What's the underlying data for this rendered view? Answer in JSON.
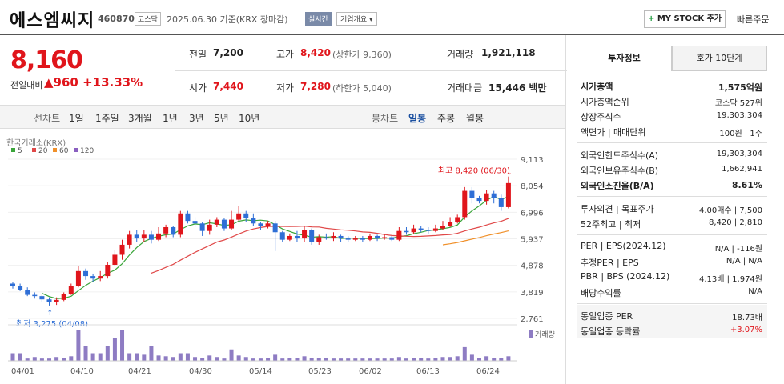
{
  "header": {
    "name": "에스엠씨지",
    "code": "460870",
    "market": "코스닥",
    "date_text": "2025.06.30 기준(KRX 장마감)",
    "live": "실시간",
    "company_info": "기업개요 ▾",
    "my_stock": "MY STOCK 추가",
    "quick_order": "빠른주문"
  },
  "price": {
    "current": "8,160",
    "change_label": "전일대비",
    "change": "▲960",
    "rate": "+13.33%"
  },
  "summary": {
    "prev_label": "전일",
    "prev": "7,200",
    "high_label": "고가",
    "high": "8,420",
    "upper_label": "(상한가",
    "upper": "9,360)",
    "vol_label": "거래량",
    "vol": "1,921,118",
    "open_label": "시가",
    "open": "7,440",
    "low_label": "저가",
    "low": "7,280",
    "lower_label": "(하한가",
    "lower": "5,040)",
    "amt_label": "거래대금",
    "amt": "15,446",
    "amt_unit": "백만"
  },
  "periods": {
    "label": "선차트",
    "items": [
      "1일",
      "1주일",
      "3개월",
      "1년",
      "3년",
      "5년",
      "10년"
    ],
    "candle_label": "봉차트",
    "candles": [
      "일봉",
      "주봉",
      "월봉"
    ],
    "candle_selected": "일봉"
  },
  "chart_data": {
    "type": "candlestick",
    "source": "한국거래소(KRX)",
    "legend": [
      {
        "name": "5",
        "color": "#3aa53a"
      },
      {
        "name": "20",
        "color": "#e04848"
      },
      {
        "name": "60",
        "color": "#f0902a"
      },
      {
        "name": "120",
        "color": "#8a5fc0"
      }
    ],
    "y_ticks": [
      9113,
      8054,
      6996,
      5937,
      4878,
      3819,
      2761
    ],
    "x_ticks": [
      "04/01",
      "04/10",
      "04/21",
      "04/30",
      "05/14",
      "05/23",
      "06/02",
      "06/13",
      "06/24"
    ],
    "high_label": "최고 8,420 (06/30)",
    "low_label": "최저 3,275 (04/08)",
    "volume_label": "거래량",
    "candles": [
      [
        4150,
        4050,
        4200,
        3950
      ],
      [
        4050,
        3900,
        4150,
        3850
      ],
      [
        3900,
        3700,
        4000,
        3650
      ],
      [
        3700,
        3650,
        3800,
        3550
      ],
      [
        3650,
        3520,
        3700,
        3400
      ],
      [
        3520,
        3400,
        3600,
        3275
      ],
      [
        3400,
        3500,
        3600,
        3300
      ],
      [
        3500,
        3750,
        3800,
        3450
      ],
      [
        3750,
        4050,
        4150,
        3700
      ],
      [
        4050,
        4650,
        4850,
        4000
      ],
      [
        4650,
        4450,
        4750,
        4300
      ],
      [
        4450,
        4350,
        4550,
        4200
      ],
      [
        4350,
        4450,
        4650,
        4250
      ],
      [
        4450,
        4900,
        5000,
        4350
      ],
      [
        4900,
        5300,
        5500,
        4850
      ],
      [
        5300,
        5700,
        5900,
        5100
      ],
      [
        5700,
        6100,
        6250,
        5550
      ],
      [
        6100,
        5950,
        6300,
        5800
      ],
      [
        5950,
        6100,
        6300,
        5800
      ],
      [
        6100,
        5900,
        6250,
        5750
      ],
      [
        5900,
        6150,
        6400,
        5850
      ],
      [
        6150,
        6400,
        6500,
        6000
      ],
      [
        6400,
        6100,
        6450,
        6000
      ],
      [
        6100,
        6950,
        7050,
        6000
      ],
      [
        6950,
        6650,
        7050,
        6550
      ],
      [
        6650,
        6550,
        6800,
        6400
      ],
      [
        6550,
        6250,
        6600,
        6050
      ],
      [
        6250,
        6500,
        6700,
        6100
      ],
      [
        6500,
        6700,
        6800,
        6400
      ],
      [
        6700,
        6350,
        6750,
        6250
      ],
      [
        6350,
        6700,
        7050,
        6300
      ],
      [
        6700,
        6950,
        7250,
        6650
      ],
      [
        6950,
        6750,
        7050,
        6600
      ],
      [
        6750,
        6550,
        6950,
        6450
      ],
      [
        6550,
        6450,
        6600,
        6300
      ],
      [
        6450,
        6550,
        6650,
        6350
      ],
      [
        6550,
        6200,
        6650,
        5450
      ],
      [
        6200,
        5900,
        6250,
        5800
      ],
      [
        5900,
        6050,
        6150,
        5850
      ],
      [
        6050,
        5950,
        6250,
        5800
      ],
      [
        5950,
        6300,
        6450,
        5800
      ],
      [
        6300,
        5800,
        6350,
        5700
      ],
      [
        5800,
        6000,
        6100,
        5700
      ],
      [
        6000,
        5950,
        6150,
        5900
      ],
      [
        5950,
        6050,
        6200,
        5850
      ],
      [
        6050,
        5950,
        6100,
        5800
      ],
      [
        5950,
        5900,
        6050,
        5800
      ],
      [
        5900,
        5950,
        6050,
        5850
      ],
      [
        5950,
        5900,
        6050,
        5800
      ],
      [
        5900,
        6050,
        6150,
        5850
      ],
      [
        6050,
        5950,
        6100,
        5850
      ],
      [
        5950,
        6000,
        6100,
        5900
      ],
      [
        6000,
        5900,
        6050,
        5850
      ],
      [
        5900,
        6250,
        6400,
        5850
      ],
      [
        6250,
        6200,
        6400,
        6100
      ],
      [
        6200,
        6350,
        6500,
        6150
      ],
      [
        6350,
        6300,
        6450,
        6200
      ],
      [
        6300,
        6250,
        6400,
        6150
      ],
      [
        6250,
        6350,
        6500,
        6200
      ],
      [
        6350,
        6450,
        6650,
        6300
      ],
      [
        6450,
        6600,
        6800,
        6400
      ],
      [
        6600,
        6800,
        6900,
        6550
      ],
      [
        6800,
        7850,
        8000,
        6700
      ],
      [
        7850,
        7550,
        8000,
        7350
      ],
      [
        7550,
        7450,
        7650,
        7350
      ],
      [
        7450,
        7750,
        7900,
        7300
      ],
      [
        7750,
        7550,
        7850,
        7350
      ],
      [
        7550,
        7200,
        7700,
        7050
      ],
      [
        7200,
        8160,
        8420,
        7150
      ]
    ],
    "volumes": [
      1,
      1,
      0.3,
      0.5,
      0.3,
      0.3,
      0.5,
      0.4,
      0.6,
      4,
      2,
      1,
      1,
      2,
      3,
      4,
      1,
      1,
      0.8,
      2,
      0.7,
      0.6,
      0.5,
      1,
      1,
      0.5,
      0.4,
      0.7,
      0.5,
      0.3,
      1.5,
      0.7,
      0.5,
      0.3,
      0.3,
      0.4,
      0.8,
      0.3,
      0.4,
      0.4,
      0.6,
      0.4,
      0.4,
      0.4,
      0.3,
      0.3,
      0.3,
      0.3,
      0.3,
      0.3,
      0.3,
      0.3,
      0.3,
      0.5,
      0.3,
      0.4,
      0.4,
      0.3,
      0.4,
      0.5,
      0.5,
      0.6,
      1.8,
      0.8,
      0.4,
      0.6,
      0.4,
      0.4,
      0.6
    ]
  },
  "right": {
    "tab_invest": "투자정보",
    "tab_quote": "호가 10단계",
    "rows1": [
      {
        "label": "시가총액",
        "value": "1,575억원",
        "bold": true
      },
      {
        "label": "시가총액순위",
        "value": "코스닥 527위"
      },
      {
        "label": "상장주식수",
        "value": "19,303,304"
      },
      {
        "label": "액면가 | 매매단위",
        "value": "100원 | 1주"
      }
    ],
    "rows2": [
      {
        "label": "외국인한도주식수(A)",
        "value": "19,303,304"
      },
      {
        "label": "외국인보유주식수(B)",
        "value": "1,662,941"
      },
      {
        "label": "외국인소진율(B/A)",
        "value": "8.61%",
        "bold": true
      }
    ],
    "rows3": [
      {
        "label": "투자의견 | 목표주가",
        "value": "4.00매수 | 7,500"
      },
      {
        "label": "52주최고 | 최저",
        "value": "8,420 | 2,810"
      }
    ],
    "rows4": [
      {
        "label": "PER | EPS(2024.12)",
        "value": "N/A | -116원"
      },
      {
        "label": "추정PER | EPS",
        "value": "N/A | N/A"
      },
      {
        "label": "PBR | BPS (2024.12)",
        "value": "4.13배 | 1,974원"
      },
      {
        "label": "배당수익률",
        "value": "N/A"
      }
    ],
    "rows5": [
      {
        "label": "동일업종 PER",
        "value": "18.73배"
      },
      {
        "label": "동일업종 등락률",
        "value": "+3.07%"
      }
    ]
  }
}
